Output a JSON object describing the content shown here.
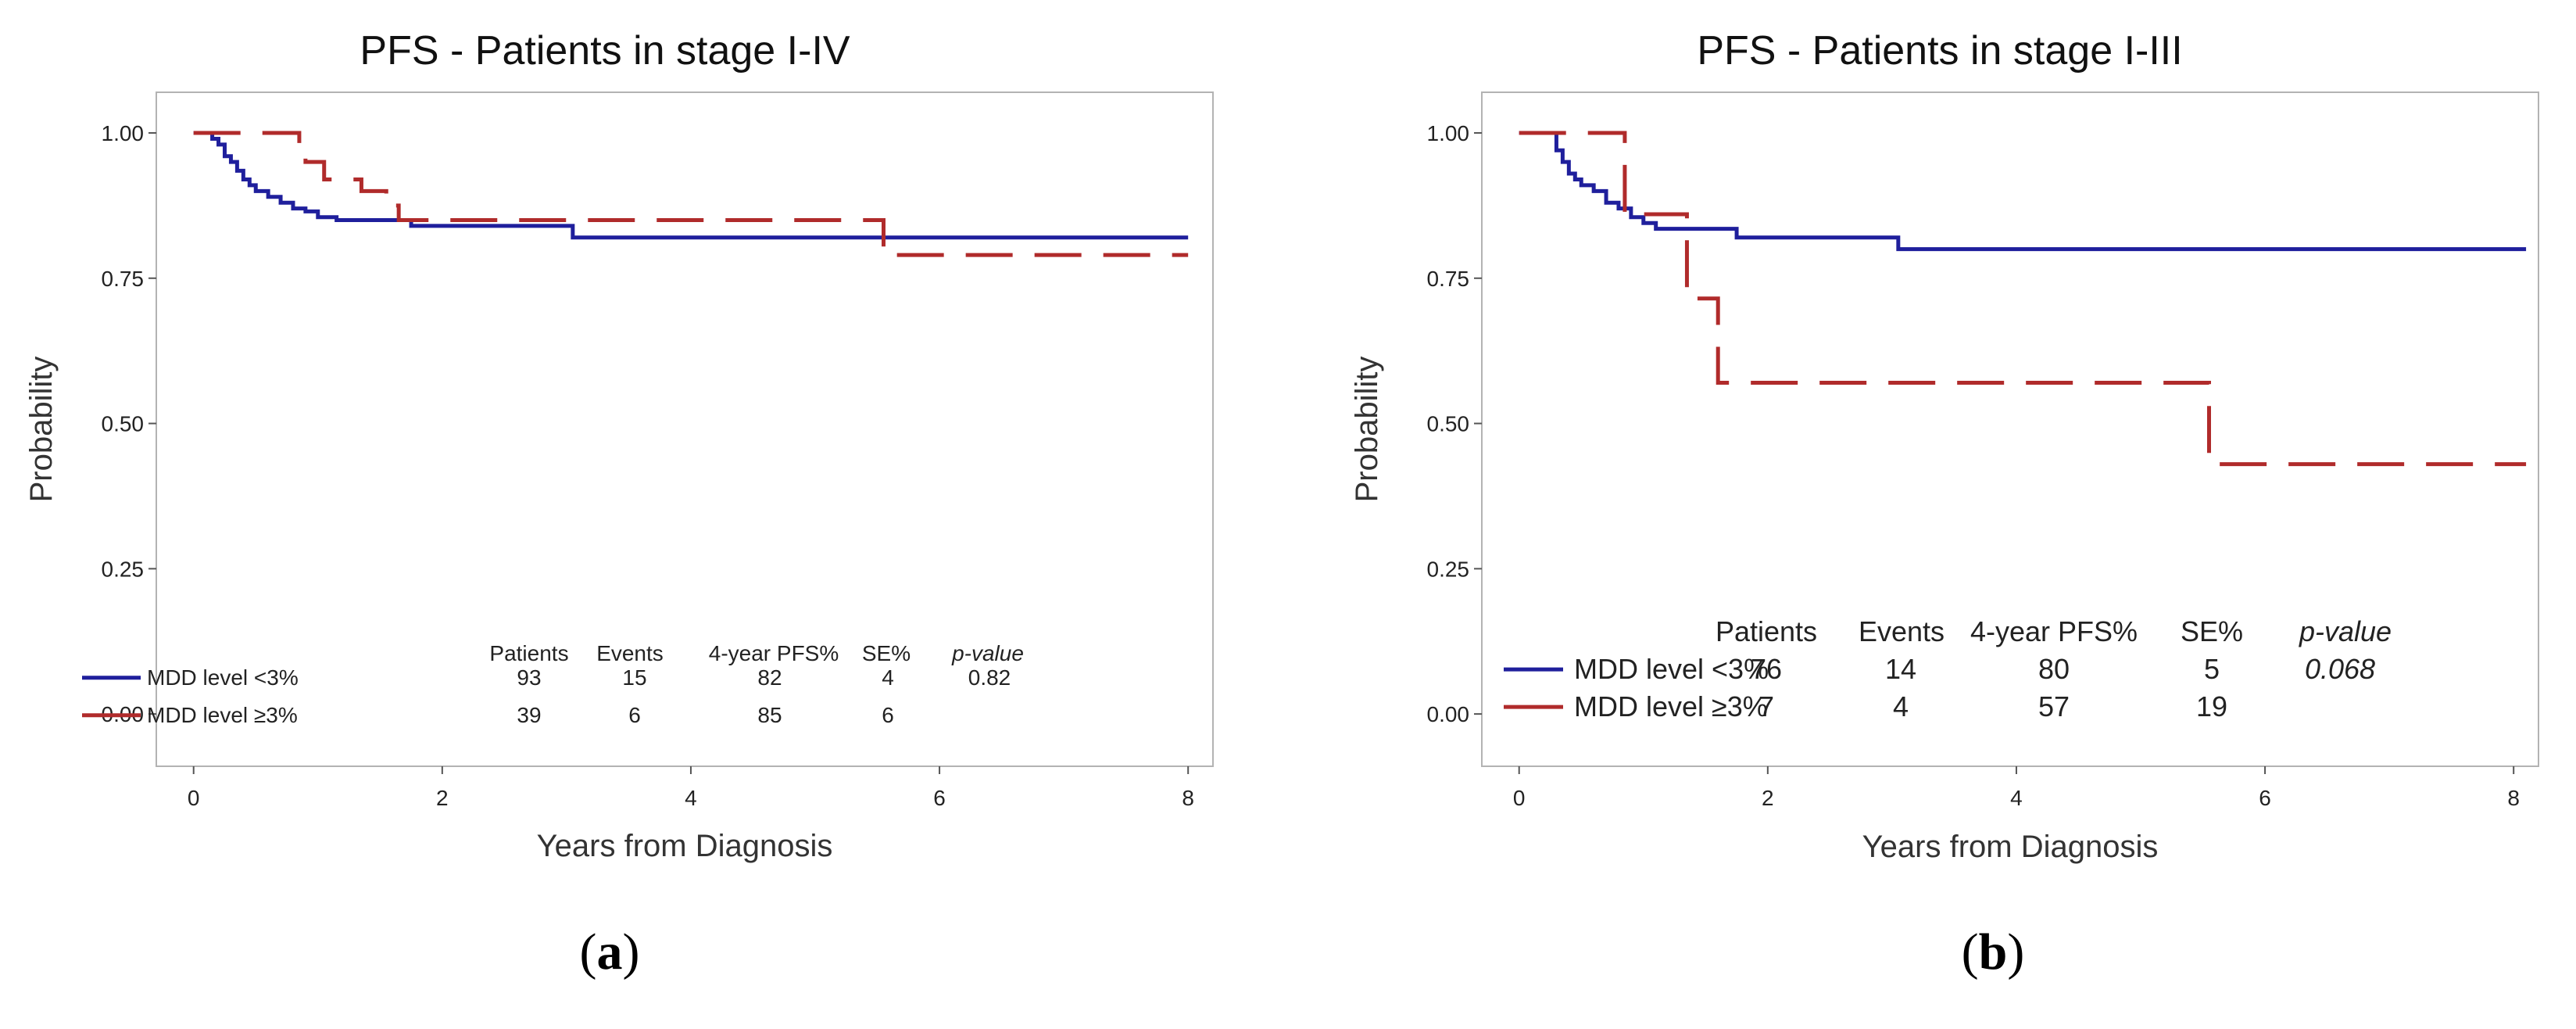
{
  "chart_data": [
    {
      "type": "line",
      "subtype": "kaplan-meier-step",
      "title": "PFS - Patients in stage I-IV",
      "xlabel": "Years from Diagnosis",
      "ylabel": "Probability",
      "xlim": [
        -0.3,
        8.2
      ],
      "ylim": [
        -0.09,
        1.07
      ],
      "xticks": [
        0,
        2,
        4,
        6,
        8
      ],
      "xtick_labels": [
        "0",
        "2",
        "4",
        "6",
        "8"
      ],
      "yticks": [
        0,
        0.25,
        0.5,
        0.75,
        1
      ],
      "ytick_labels": [
        "0.00",
        "0.25",
        "0.50",
        "0.75",
        "1.00"
      ],
      "grid": false,
      "legend_position": "bottom-left",
      "series": [
        {
          "name": "MDD level <3%",
          "color": "#1f1f9c",
          "dash": "solid",
          "x": [
            0,
            0.15,
            0.2,
            0.25,
            0.3,
            0.35,
            0.4,
            0.45,
            0.5,
            0.6,
            0.7,
            0.8,
            0.9,
            1.0,
            1.15,
            1.75,
            3.05,
            8.0
          ],
          "y": [
            1.0,
            0.99,
            0.98,
            0.96,
            0.95,
            0.935,
            0.92,
            0.91,
            0.9,
            0.89,
            0.88,
            0.87,
            0.865,
            0.855,
            0.85,
            0.84,
            0.82,
            0.82
          ]
        },
        {
          "name": "MDD level ≥3%",
          "color": "#b02b2b",
          "dash": "dashed",
          "x": [
            0,
            0.85,
            0.9,
            1.05,
            1.2,
            1.35,
            1.55,
            1.65,
            5.55,
            8.0
          ],
          "y": [
            1.0,
            0.97,
            0.95,
            0.92,
            0.92,
            0.9,
            0.875,
            0.85,
            0.79,
            0.79
          ]
        }
      ],
      "legend_table": {
        "headers": [
          "Patients",
          "Events",
          "4-year PFS%",
          "SE%",
          "p-value"
        ],
        "rows": [
          {
            "label": "MDD level <3%",
            "values": [
              "93",
              "15",
              "82",
              "4",
              "0.82"
            ]
          },
          {
            "label": "MDD level ≥3%",
            "values": [
              "39",
              "6",
              "85",
              "6",
              ""
            ]
          }
        ]
      },
      "panel_label": "a"
    },
    {
      "type": "line",
      "subtype": "kaplan-meier-step",
      "title": "PFS - Patients in stage I-III",
      "xlabel": "Years from Diagnosis",
      "ylabel": "Probability",
      "xlim": [
        -0.3,
        8.2
      ],
      "ylim": [
        -0.09,
        1.07
      ],
      "xticks": [
        0,
        2,
        4,
        6,
        8
      ],
      "xtick_labels": [
        "0",
        "2",
        "4",
        "6",
        "8"
      ],
      "yticks": [
        0,
        0.25,
        0.5,
        0.75,
        1
      ],
      "ytick_labels": [
        "0.00",
        "0.25",
        "0.50",
        "0.75",
        "1.00"
      ],
      "grid": false,
      "legend_position": "bottom-left",
      "series": [
        {
          "name": "MDD level <3%",
          "color": "#1f1f9c",
          "dash": "solid",
          "x": [
            0,
            0.3,
            0.35,
            0.4,
            0.45,
            0.5,
            0.6,
            0.7,
            0.8,
            0.9,
            1.0,
            1.1,
            1.75,
            3.05,
            8.1
          ],
          "y": [
            1.0,
            0.97,
            0.95,
            0.93,
            0.92,
            0.91,
            0.9,
            0.88,
            0.87,
            0.855,
            0.845,
            0.835,
            0.82,
            0.8,
            0.8
          ]
        },
        {
          "name": "MDD level ≥3%",
          "color": "#b02b2b",
          "dash": "dashed",
          "x": [
            0,
            0.85,
            1.35,
            1.6,
            5.55,
            8.1
          ],
          "y": [
            1.0,
            0.86,
            0.715,
            0.57,
            0.43,
            0.43
          ]
        }
      ],
      "legend_table": {
        "headers": [
          "Patients",
          "Events",
          "4-year PFS%",
          "SE%",
          "p-value"
        ],
        "rows": [
          {
            "label": "MDD level <3%",
            "values": [
              "76",
              "14",
              "80",
              "5",
              "0.068"
            ]
          },
          {
            "label": "MDD level ≥3%",
            "values": [
              "7",
              "4",
              "57",
              "19",
              ""
            ]
          }
        ]
      },
      "panel_label": "b"
    }
  ]
}
